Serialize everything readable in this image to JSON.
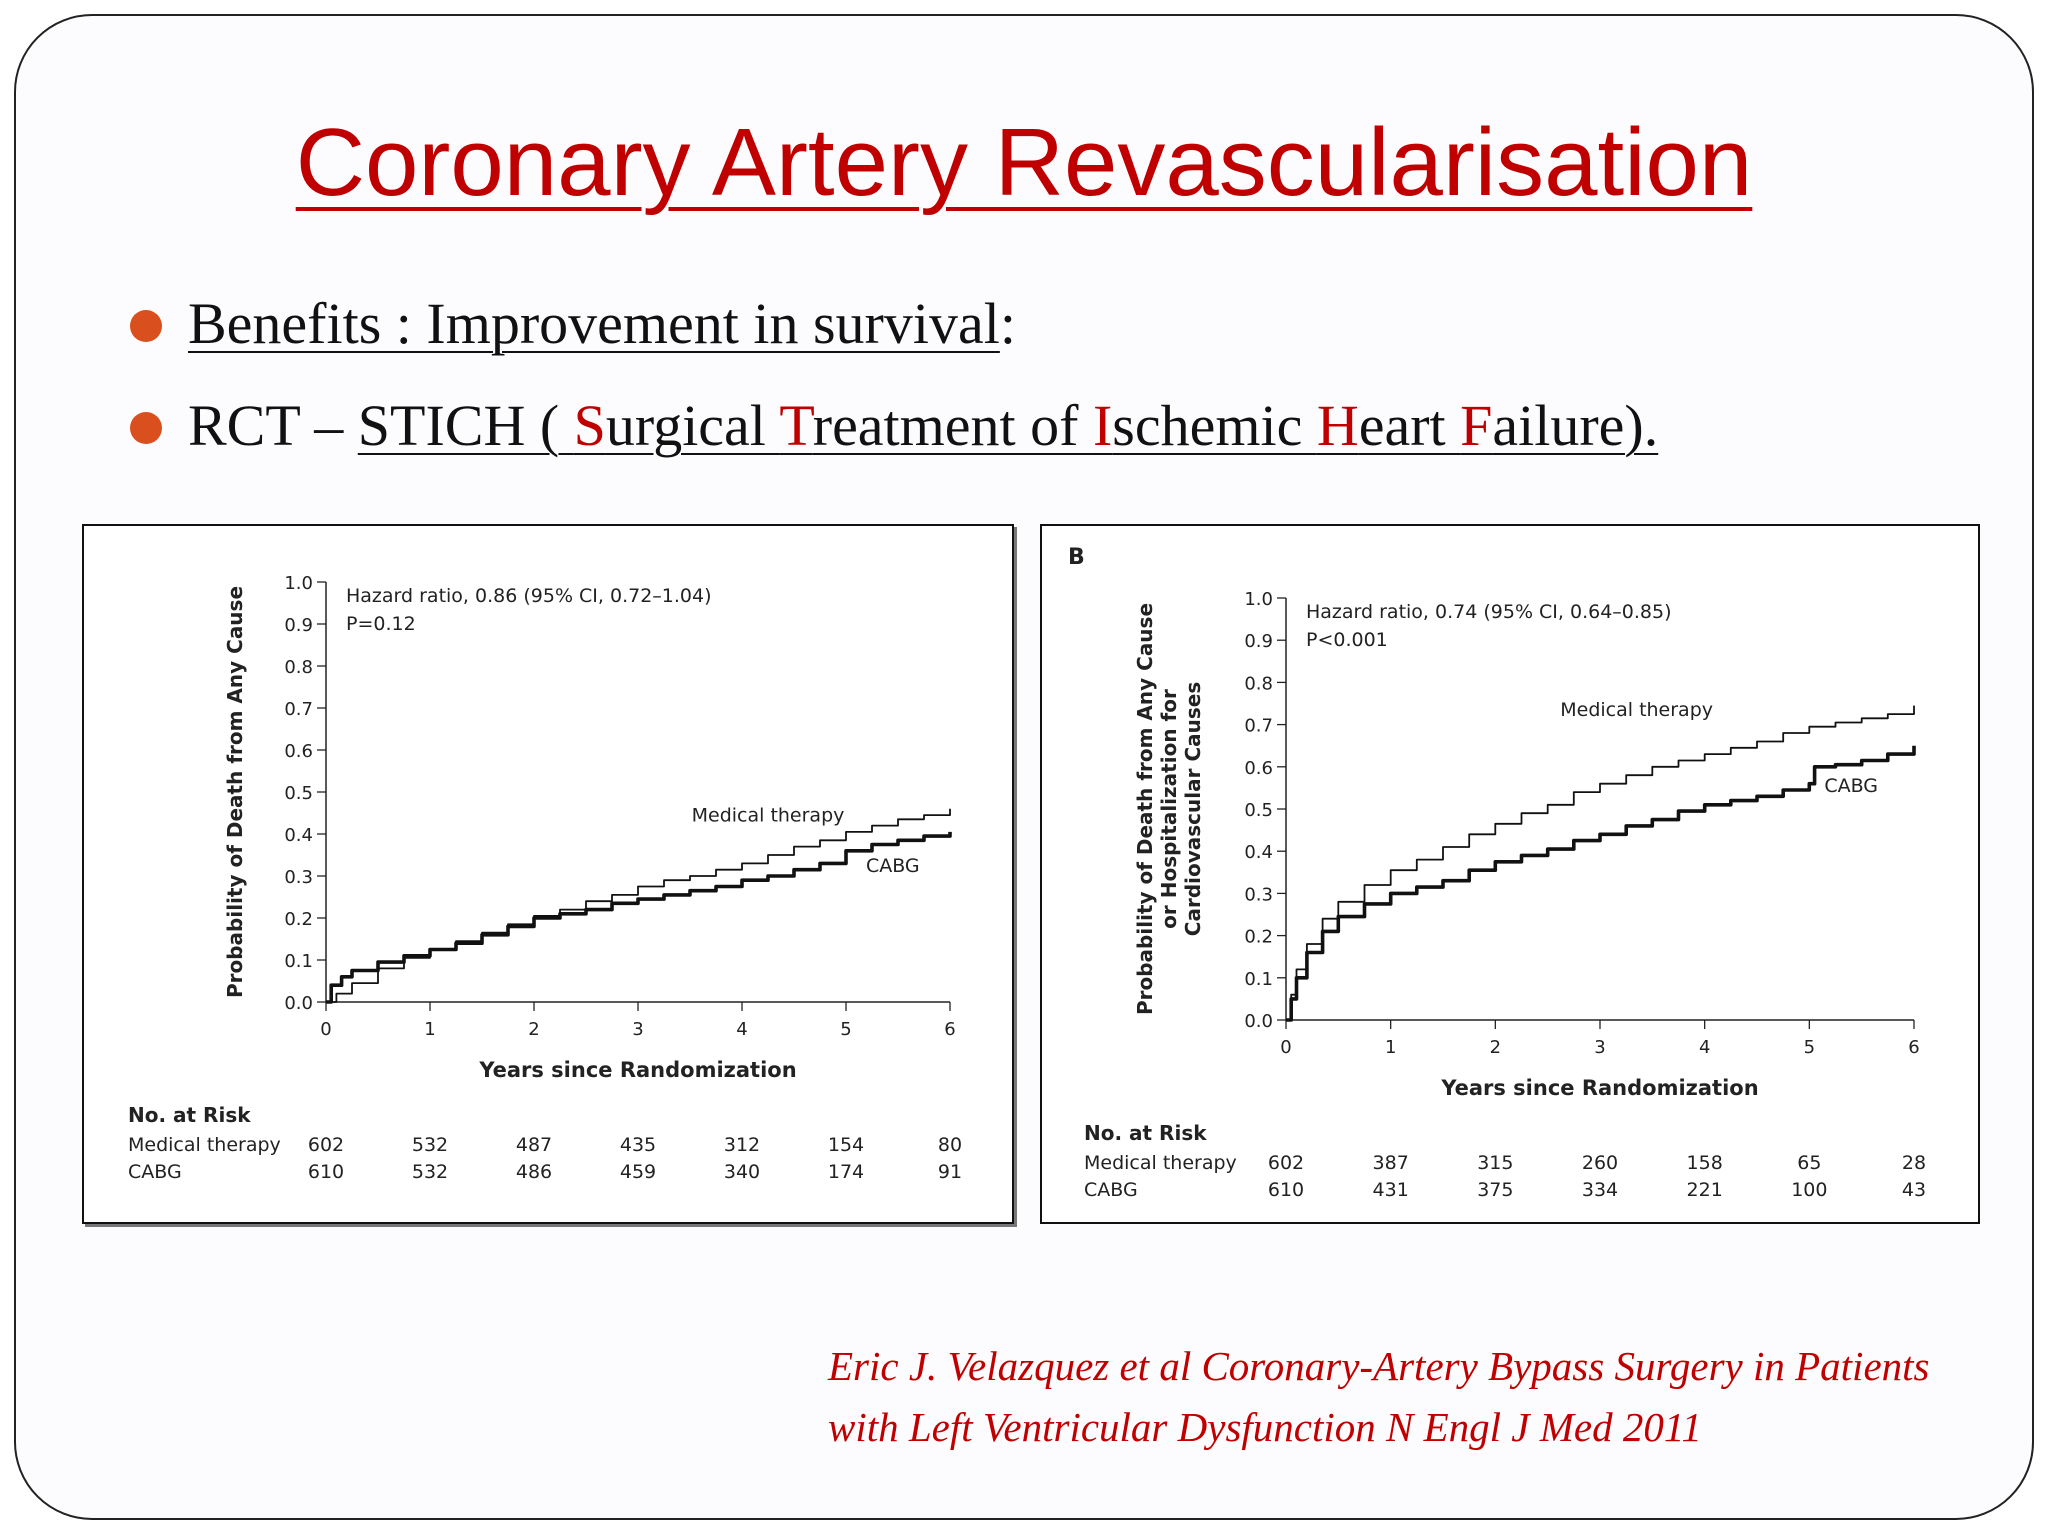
{
  "slide": {
    "title": "Coronary Artery Revascularisation",
    "bullet1": {
      "underlined": "Benefits : Improvement in survival",
      "tail": ":"
    },
    "bullet2": {
      "prefix": "RCT – ",
      "parts": [
        {
          "t": "STICH ( ",
          "red": false
        },
        {
          "t": "S",
          "red": true
        },
        {
          "t": "urgical ",
          "red": false
        },
        {
          "t": "T",
          "red": true
        },
        {
          "t": "reatment of ",
          "red": false
        },
        {
          "t": "I",
          "red": true
        },
        {
          "t": "schemic ",
          "red": false
        },
        {
          "t": "H",
          "red": true
        },
        {
          "t": "eart ",
          "red": false
        },
        {
          "t": "F",
          "red": true
        },
        {
          "t": "ailure).",
          "red": false
        }
      ]
    },
    "citation_line1": "Eric J. Velazquez et al Coronary-Artery Bypass Surgery in Patients",
    "citation_line2": "with Left Ventricular Dysfunction N Engl J Med 2011",
    "colors": {
      "title": "#c00000",
      "bullet": "#d9501e",
      "line": "#111111"
    }
  },
  "chart_data": [
    {
      "type": "line",
      "panel_label": "",
      "ylabel": [
        "Probability of Death from Any Cause"
      ],
      "xlabel": "Years since Randomization",
      "xlim": [
        0,
        6
      ],
      "ylim": [
        0,
        1.0
      ],
      "xticks": [
        "0",
        "1",
        "2",
        "3",
        "4",
        "5",
        "6"
      ],
      "yticks": [
        "0.0",
        "0.1",
        "0.2",
        "0.3",
        "0.4",
        "0.5",
        "0.6",
        "0.7",
        "0.8",
        "0.9",
        "1.0"
      ],
      "annotation": [
        "Hazard ratio, 0.86 (95% CI, 0.72–1.04)",
        "P=0.12"
      ],
      "series": [
        {
          "name": "Medical therapy",
          "x": [
            0,
            0.1,
            0.25,
            0.5,
            0.75,
            1,
            1.25,
            1.5,
            1.75,
            2,
            2.25,
            2.5,
            2.75,
            3,
            3.25,
            3.5,
            3.75,
            4,
            4.25,
            4.5,
            4.75,
            5,
            5.25,
            5.5,
            5.75,
            6
          ],
          "y": [
            0,
            0.02,
            0.045,
            0.08,
            0.105,
            0.125,
            0.145,
            0.165,
            0.185,
            0.205,
            0.22,
            0.24,
            0.255,
            0.275,
            0.29,
            0.3,
            0.315,
            0.33,
            0.35,
            0.37,
            0.385,
            0.405,
            0.42,
            0.435,
            0.445,
            0.46
          ]
        },
        {
          "name": "CABG",
          "x": [
            0,
            0.05,
            0.15,
            0.25,
            0.5,
            0.75,
            1,
            1.25,
            1.5,
            1.75,
            2,
            2.25,
            2.5,
            2.75,
            3,
            3.25,
            3.5,
            3.75,
            4,
            4.25,
            4.5,
            4.75,
            5,
            5.25,
            5.5,
            5.75,
            6
          ],
          "y": [
            0,
            0.04,
            0.06,
            0.075,
            0.095,
            0.11,
            0.125,
            0.14,
            0.16,
            0.18,
            0.2,
            0.21,
            0.22,
            0.235,
            0.245,
            0.255,
            0.265,
            0.275,
            0.29,
            0.3,
            0.315,
            0.33,
            0.36,
            0.375,
            0.385,
            0.395,
            0.405
          ]
        }
      ],
      "series_labels": [
        {
          "text": "Medical therapy",
          "x": 4.25,
          "y": 0.43
        },
        {
          "text": "CABG",
          "x": 5.45,
          "y": 0.31
        }
      ],
      "risk_table": {
        "title": "No. at Risk",
        "rows": [
          {
            "label": "Medical therapy",
            "values": [
              "602",
              "532",
              "487",
              "435",
              "312",
              "154",
              "80"
            ]
          },
          {
            "label": "CABG",
            "values": [
              "610",
              "532",
              "486",
              "459",
              "340",
              "174",
              "91"
            ]
          }
        ]
      }
    },
    {
      "type": "line",
      "panel_label": "B",
      "ylabel": [
        "Probability of Death from Any Cause",
        "or Hospitalization for",
        "Cardiovascular Causes"
      ],
      "xlabel": "Years since Randomization",
      "xlim": [
        0,
        6
      ],
      "ylim": [
        0,
        1.0
      ],
      "xticks": [
        "0",
        "1",
        "2",
        "3",
        "4",
        "5",
        "6"
      ],
      "yticks": [
        "0.0",
        "0.1",
        "0.2",
        "0.3",
        "0.4",
        "0.5",
        "0.6",
        "0.7",
        "0.8",
        "0.9",
        "1.0"
      ],
      "annotation": [
        "Hazard ratio, 0.74 (95% CI, 0.64–0.85)",
        "P<0.001"
      ],
      "series": [
        {
          "name": "Medical therapy",
          "x": [
            0,
            0.05,
            0.1,
            0.2,
            0.35,
            0.5,
            0.75,
            1,
            1.25,
            1.5,
            1.75,
            2,
            2.25,
            2.5,
            2.75,
            3,
            3.25,
            3.5,
            3.75,
            4,
            4.25,
            4.5,
            4.75,
            5,
            5.25,
            5.5,
            5.75,
            6
          ],
          "y": [
            0,
            0.06,
            0.12,
            0.18,
            0.24,
            0.28,
            0.32,
            0.355,
            0.38,
            0.41,
            0.44,
            0.465,
            0.49,
            0.51,
            0.54,
            0.56,
            0.58,
            0.6,
            0.615,
            0.63,
            0.645,
            0.66,
            0.68,
            0.695,
            0.705,
            0.715,
            0.725,
            0.745
          ]
        },
        {
          "name": "CABG",
          "x": [
            0,
            0.05,
            0.1,
            0.2,
            0.35,
            0.5,
            0.75,
            1,
            1.25,
            1.5,
            1.75,
            2,
            2.25,
            2.5,
            2.75,
            3,
            3.25,
            3.5,
            3.75,
            4,
            4.25,
            4.5,
            4.75,
            5,
            5.05,
            5.25,
            5.5,
            5.75,
            6
          ],
          "y": [
            0,
            0.05,
            0.1,
            0.16,
            0.21,
            0.245,
            0.275,
            0.3,
            0.315,
            0.33,
            0.355,
            0.375,
            0.39,
            0.405,
            0.425,
            0.44,
            0.46,
            0.475,
            0.495,
            0.51,
            0.52,
            0.53,
            0.545,
            0.56,
            0.6,
            0.605,
            0.615,
            0.63,
            0.65
          ]
        }
      ],
      "series_labels": [
        {
          "text": "Medical therapy",
          "x": 3.35,
          "y": 0.72
        },
        {
          "text": "CABG",
          "x": 5.4,
          "y": 0.54
        }
      ],
      "risk_table": {
        "title": "No. at Risk",
        "rows": [
          {
            "label": "Medical therapy",
            "values": [
              "602",
              "387",
              "315",
              "260",
              "158",
              "65",
              "28"
            ]
          },
          {
            "label": "CABG",
            "values": [
              "610",
              "431",
              "375",
              "334",
              "221",
              "100",
              "43"
            ]
          }
        ]
      }
    }
  ]
}
